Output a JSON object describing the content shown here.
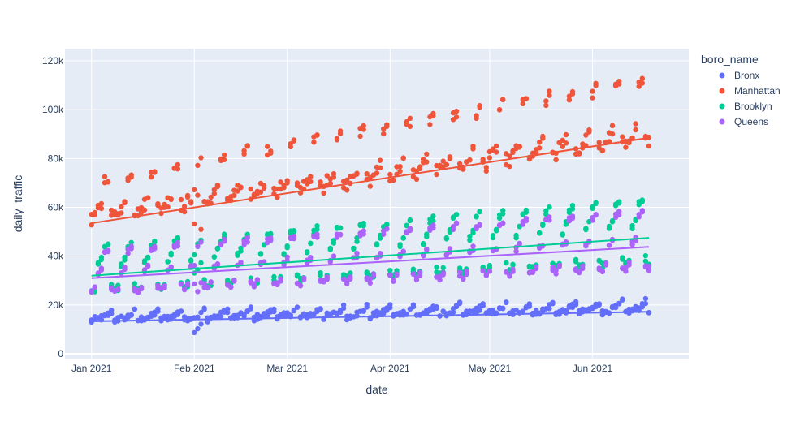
{
  "chart_data": {
    "type": "scatter",
    "xlabel": "date",
    "ylabel": "daily_traffic",
    "x_range": [
      "2020-12-24",
      "2021-06-30"
    ],
    "y_range": [
      -2000,
      125000
    ],
    "x_ticks": [
      {
        "date": "2021-01-01",
        "label": "Jan 2021"
      },
      {
        "date": "2021-02-01",
        "label": "Feb 2021"
      },
      {
        "date": "2021-03-01",
        "label": "Mar 2021"
      },
      {
        "date": "2021-04-01",
        "label": "Apr 2021"
      },
      {
        "date": "2021-05-01",
        "label": "May 2021"
      },
      {
        "date": "2021-06-01",
        "label": "Jun 2021"
      }
    ],
    "y_ticks": [
      {
        "value": 0,
        "label": "0"
      },
      {
        "value": 20000,
        "label": "20k"
      },
      {
        "value": 40000,
        "label": "40k"
      },
      {
        "value": 60000,
        "label": "60k"
      },
      {
        "value": 80000,
        "label": "80k"
      },
      {
        "value": 100000,
        "label": "100k"
      },
      {
        "value": 120000,
        "label": "120k"
      }
    ],
    "legend": {
      "title": "boro_name",
      "placement": "right"
    },
    "x_start": "2021-01-01",
    "x_end": "2021-06-18",
    "series": [
      {
        "name": "Bronx",
        "color": "#636efa",
        "trend": {
          "start": 13300,
          "end": 17200
        },
        "day_pattern": [
          13500,
          14000,
          14300,
          14600,
          15000,
          16000,
          17000
        ],
        "noise": 1200
      },
      {
        "name": "Manhattan",
        "color": "#ef553b",
        "trend": {
          "start": 53500,
          "end": 88500
        },
        "day_pattern": [
          55000,
          57000,
          58000,
          59500,
          70500,
          71500,
          56000
        ],
        "noise": 2500
      },
      {
        "name": "Brooklyn",
        "color": "#00cc96",
        "trend": {
          "start": 32000,
          "end": 47500
        },
        "day_pattern": [
          25500,
          26500,
          36000,
          38500,
          42500,
          43500,
          27000
        ],
        "noise": 1200
      },
      {
        "name": "Queens",
        "color": "#ab63fa",
        "trend": {
          "start": 31000,
          "end": 43800
        },
        "day_pattern": [
          25000,
          26500,
          33000,
          34000,
          41000,
          42000,
          26000
        ],
        "noise": 1000
      }
    ]
  }
}
